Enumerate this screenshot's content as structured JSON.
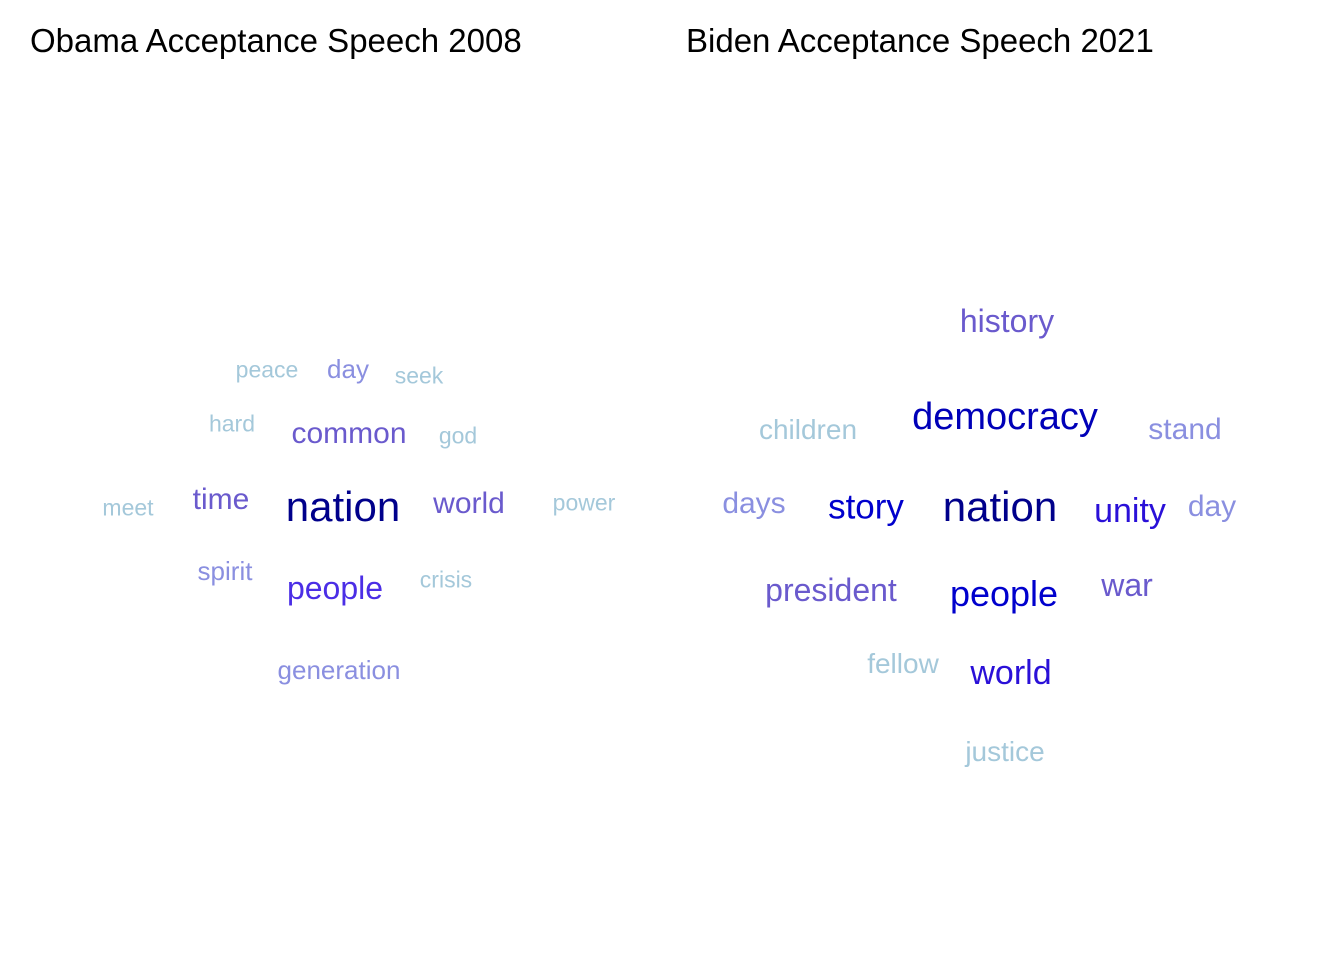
{
  "chart_data": [
    {
      "type": "wordcloud",
      "title": "Obama Acceptance Speech 2008",
      "words": [
        {
          "text": "nation",
          "color": "#00008B"
        },
        {
          "text": "people",
          "color": "#4B2EE6"
        },
        {
          "text": "common",
          "color": "#6A5ACD"
        },
        {
          "text": "world",
          "color": "#6A5ACD"
        },
        {
          "text": "time",
          "color": "#6A5ACD"
        },
        {
          "text": "spirit",
          "color": "#8A8FE0"
        },
        {
          "text": "day",
          "color": "#8A8FE0"
        },
        {
          "text": "generation",
          "color": "#8A8FE0"
        },
        {
          "text": "crisis",
          "color": "#A4C8DA"
        },
        {
          "text": "peace",
          "color": "#A4C8DA"
        },
        {
          "text": "seek",
          "color": "#A4C8DA"
        },
        {
          "text": "hard",
          "color": "#A4C8DA"
        },
        {
          "text": "god",
          "color": "#A4C8DA"
        },
        {
          "text": "meet",
          "color": "#A4C8DA"
        },
        {
          "text": "power",
          "color": "#A4C8DA"
        }
      ]
    },
    {
      "type": "wordcloud",
      "title": "Biden Acceptance Speech 2021",
      "words": [
        {
          "text": "nation",
          "color": "#00008B"
        },
        {
          "text": "democracy",
          "color": "#0000B8"
        },
        {
          "text": "people",
          "color": "#0000CD"
        },
        {
          "text": "story",
          "color": "#0000CD"
        },
        {
          "text": "unity",
          "color": "#2A10D8"
        },
        {
          "text": "world",
          "color": "#2A10D8"
        },
        {
          "text": "history",
          "color": "#6A5ACD"
        },
        {
          "text": "war",
          "color": "#6A5ACD"
        },
        {
          "text": "president",
          "color": "#6A5ACD"
        },
        {
          "text": "days",
          "color": "#8A8FE0"
        },
        {
          "text": "day",
          "color": "#8A8FE0"
        },
        {
          "text": "stand",
          "color": "#8A8FE0"
        },
        {
          "text": "children",
          "color": "#A4C8DA"
        },
        {
          "text": "fellow",
          "color": "#A4C8DA"
        },
        {
          "text": "justice",
          "color": "#A4C8DA"
        }
      ]
    }
  ]
}
